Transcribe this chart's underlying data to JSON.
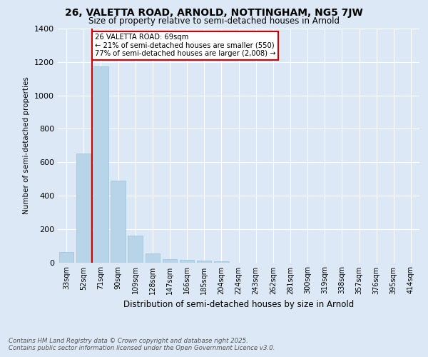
{
  "title_line1": "26, VALETTA ROAD, ARNOLD, NOTTINGHAM, NG5 7JW",
  "title_line2": "Size of property relative to semi-detached houses in Arnold",
  "xlabel": "Distribution of semi-detached houses by size in Arnold",
  "ylabel": "Number of semi-detached properties",
  "categories": [
    "33sqm",
    "52sqm",
    "71sqm",
    "90sqm",
    "109sqm",
    "128sqm",
    "147sqm",
    "166sqm",
    "185sqm",
    "204sqm",
    "224sqm",
    "243sqm",
    "262sqm",
    "281sqm",
    "300sqm",
    "319sqm",
    "338sqm",
    "357sqm",
    "376sqm",
    "395sqm",
    "414sqm"
  ],
  "values": [
    60,
    650,
    1175,
    490,
    160,
    55,
    20,
    15,
    10,
    5,
    0,
    0,
    0,
    0,
    0,
    0,
    0,
    0,
    0,
    0,
    0
  ],
  "bar_color": "#b8d4e8",
  "bar_edge_color": "#9bbfd8",
  "vline_index": 2,
  "vline_color": "#cc0000",
  "annotation_title": "26 VALETTA ROAD: 69sqm",
  "annotation_line2": "← 21% of semi-detached houses are smaller (550)",
  "annotation_line3": "77% of semi-detached houses are larger (2,008) →",
  "annotation_box_color": "#cc0000",
  "ylim": [
    0,
    1400
  ],
  "yticks": [
    0,
    200,
    400,
    600,
    800,
    1000,
    1200,
    1400
  ],
  "bg_color": "#dce8f5",
  "footer_line1": "Contains HM Land Registry data © Crown copyright and database right 2025.",
  "footer_line2": "Contains public sector information licensed under the Open Government Licence v3.0."
}
